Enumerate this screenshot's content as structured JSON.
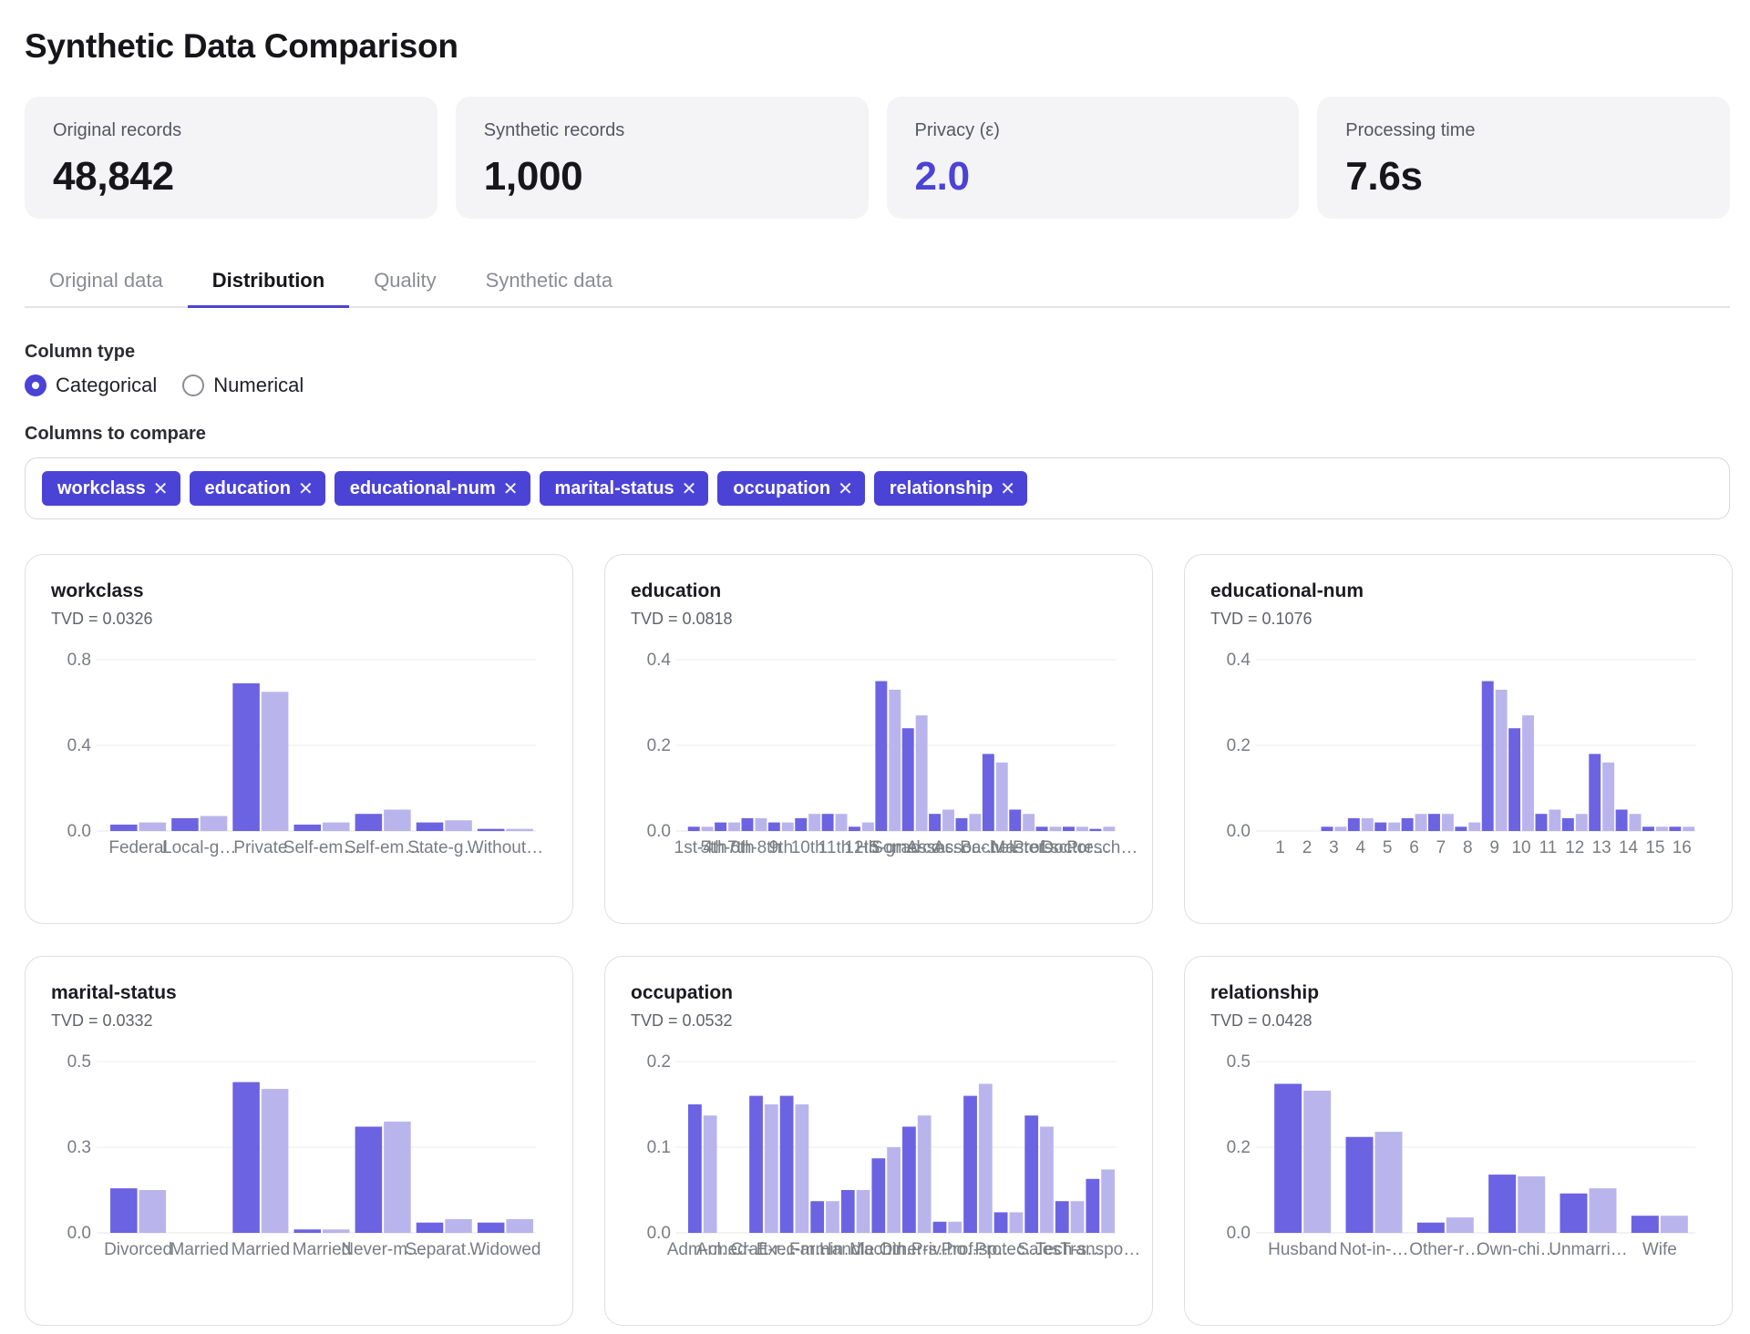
{
  "page": {
    "title": "Synthetic Data Comparison"
  },
  "metrics": [
    {
      "label": "Original records",
      "value": "48,842",
      "accent": false
    },
    {
      "label": "Synthetic records",
      "value": "1,000",
      "accent": false
    },
    {
      "label": "Privacy (ε)",
      "value": "2.0",
      "accent": true
    },
    {
      "label": "Processing time",
      "value": "7.6s",
      "accent": false
    }
  ],
  "tabs": [
    {
      "label": "Original data",
      "active": false
    },
    {
      "label": "Distribution",
      "active": true
    },
    {
      "label": "Quality",
      "active": false
    },
    {
      "label": "Synthetic data",
      "active": false
    }
  ],
  "column_type": {
    "label": "Column type",
    "options": [
      {
        "label": "Categorical",
        "checked": true
      },
      {
        "label": "Numerical",
        "checked": false
      }
    ]
  },
  "columns_to_compare": {
    "label": "Columns to compare",
    "tags": [
      "workclass",
      "education",
      "educational-num",
      "marital-status",
      "occupation",
      "relationship"
    ],
    "remove_glyph": "✕"
  },
  "colors": {
    "accent": "#4b43d6",
    "original_bar": "#6c63e2",
    "synthetic_bar": "#b9b5ec",
    "grid": "#ececef"
  },
  "chart_data": [
    {
      "type": "bar",
      "title": "workclass",
      "subtitle": "TVD = 0.0326",
      "ylim": [
        0,
        0.8
      ],
      "yticks": [
        "0.0",
        "0.4",
        "0.8"
      ],
      "ytick_values": [
        0,
        0.4,
        0.8
      ],
      "categories": [
        "Federal",
        "Local-g…",
        "Private",
        "Self-em…",
        "Self-em…",
        "State-g…",
        "Without…"
      ],
      "series": [
        {
          "values": [
            0.03,
            0.06,
            0.69,
            0.03,
            0.08,
            0.04,
            0.01
          ]
        },
        {
          "values": [
            0.04,
            0.07,
            0.65,
            0.04,
            0.1,
            0.05,
            0.01
          ]
        }
      ]
    },
    {
      "type": "bar",
      "title": "education",
      "subtitle": "TVD = 0.0818",
      "ylim": [
        0,
        0.4
      ],
      "yticks": [
        "0.0",
        "0.2",
        "0.4"
      ],
      "ytick_values": [
        0,
        0.2,
        0.4
      ],
      "categories": [
        "1st-4th",
        "5th-6th",
        "7th-8th",
        "9th",
        "10th",
        "11th",
        "12th",
        "HS-grad",
        "Some-co…",
        "Assoc-…",
        "Assoc-…",
        "Bachel…",
        "Masters",
        "Prof-sc…",
        "Doctor…",
        "Presch…"
      ],
      "series": [
        {
          "values": [
            0.01,
            0.02,
            0.03,
            0.02,
            0.03,
            0.04,
            0.01,
            0.35,
            0.24,
            0.04,
            0.03,
            0.18,
            0.05,
            0.01,
            0.01,
            0.005
          ]
        },
        {
          "values": [
            0.01,
            0.02,
            0.03,
            0.02,
            0.04,
            0.04,
            0.02,
            0.33,
            0.27,
            0.05,
            0.04,
            0.16,
            0.04,
            0.01,
            0.01,
            0.01
          ]
        }
      ]
    },
    {
      "type": "bar",
      "title": "educational-num",
      "subtitle": "TVD = 0.1076",
      "ylim": [
        0,
        0.4
      ],
      "yticks": [
        "0.0",
        "0.2",
        "0.4"
      ],
      "ytick_values": [
        0,
        0.2,
        0.4
      ],
      "categories": [
        "1",
        "2",
        "3",
        "4",
        "5",
        "6",
        "7",
        "8",
        "9",
        "10",
        "11",
        "12",
        "13",
        "14",
        "15",
        "16"
      ],
      "series": [
        {
          "values": [
            0.0,
            0.0,
            0.01,
            0.03,
            0.02,
            0.03,
            0.04,
            0.01,
            0.35,
            0.24,
            0.04,
            0.03,
            0.18,
            0.05,
            0.01,
            0.01
          ]
        },
        {
          "values": [
            0.0,
            0.0,
            0.01,
            0.03,
            0.02,
            0.04,
            0.04,
            0.02,
            0.33,
            0.27,
            0.05,
            0.04,
            0.16,
            0.04,
            0.01,
            0.01
          ]
        }
      ]
    },
    {
      "type": "bar",
      "title": "marital-status",
      "subtitle": "TVD = 0.0332",
      "ylim": [
        0,
        0.5
      ],
      "yticks": [
        "0.0",
        "0.3",
        "0.5"
      ],
      "ytick_values": [
        0,
        0.25,
        0.5
      ],
      "categories": [
        "Divorced",
        "Married",
        "Married",
        "Married",
        "Never-m…",
        "Separat…",
        "Widowed"
      ],
      "series": [
        {
          "values": [
            0.13,
            0.0,
            0.44,
            0.01,
            0.31,
            0.03,
            0.03
          ]
        },
        {
          "values": [
            0.125,
            0.0,
            0.42,
            0.01,
            0.325,
            0.04,
            0.04
          ]
        }
      ]
    },
    {
      "type": "bar",
      "title": "occupation",
      "subtitle": "TVD = 0.0532",
      "ylim": [
        0,
        0.2
      ],
      "yticks": [
        "0.0",
        "0.1",
        "0.2"
      ],
      "ytick_values": [
        0,
        0.1,
        0.2
      ],
      "categories": [
        "Adm-cl…",
        "Armed-…",
        "Craft-r…",
        "Exec-m…",
        "Farmin…",
        "Handle…",
        "Machin…",
        "Other-s…",
        "Priv-ho…",
        "Prof-sp…",
        "Protec…",
        "Sales",
        "Tech-s…",
        "Transpo…"
      ],
      "series": [
        {
          "values": [
            0.15,
            0.0,
            0.16,
            0.16,
            0.037,
            0.05,
            0.087,
            0.124,
            0.013,
            0.16,
            0.024,
            0.137,
            0.037,
            0.063
          ]
        },
        {
          "values": [
            0.137,
            0.0,
            0.15,
            0.15,
            0.037,
            0.05,
            0.1,
            0.137,
            0.013,
            0.174,
            0.024,
            0.124,
            0.037,
            0.074
          ]
        }
      ]
    },
    {
      "type": "bar",
      "title": "relationship",
      "subtitle": "TVD = 0.0428",
      "ylim": [
        0,
        0.5
      ],
      "yticks": [
        "0.0",
        "0.2",
        "0.5"
      ],
      "ytick_values": [
        0,
        0.25,
        0.5
      ],
      "categories": [
        "Husband",
        "Not-in-…",
        "Other-r…",
        "Own-chi…",
        "Unmarri…",
        "Wife"
      ],
      "series": [
        {
          "values": [
            0.435,
            0.28,
            0.03,
            0.17,
            0.115,
            0.05
          ]
        },
        {
          "values": [
            0.415,
            0.295,
            0.045,
            0.165,
            0.13,
            0.05
          ]
        }
      ]
    }
  ]
}
